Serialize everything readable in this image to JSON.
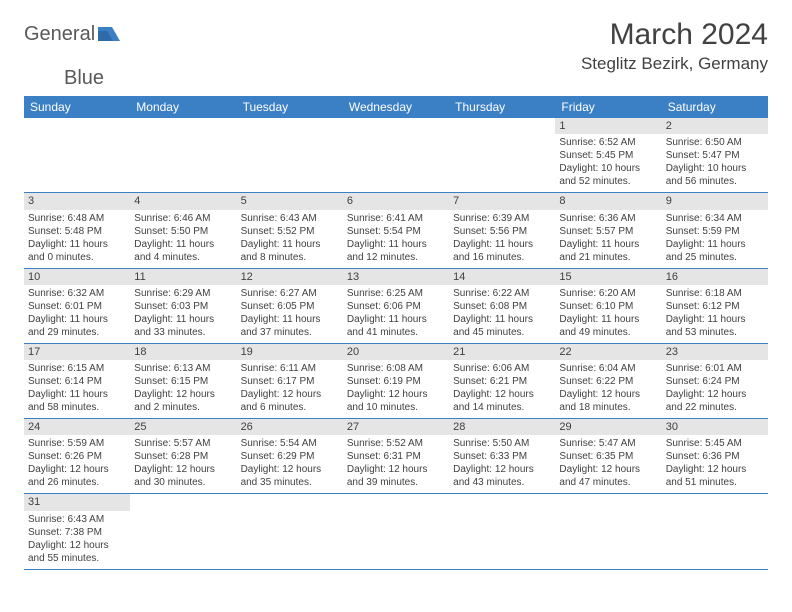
{
  "logo": {
    "text1": "General",
    "text2": "Blue"
  },
  "title": "March 2024",
  "location": "Steglitz Bezirk, Germany",
  "dow": [
    "Sunday",
    "Monday",
    "Tuesday",
    "Wednesday",
    "Thursday",
    "Friday",
    "Saturday"
  ],
  "colors": {
    "header_bg": "#3b7fc4",
    "header_text": "#ffffff",
    "daynum_bg": "#e5e5e5",
    "rule": "#3b7fc4",
    "text": "#414141",
    "logo_gray": "#58595b",
    "logo_blue": "#3b7fc4"
  },
  "fonts": {
    "title_size": 30,
    "location_size": 17,
    "dow_size": 12,
    "daynum_size": 11,
    "body_size": 10
  },
  "layout": {
    "cols": 7,
    "rows": 6,
    "cell_min_height": 72
  },
  "weeks": [
    [
      null,
      null,
      null,
      null,
      null,
      {
        "n": "1",
        "sunrise": "Sunrise: 6:52 AM",
        "sunset": "Sunset: 5:45 PM",
        "daylight": "Daylight: 10 hours and 52 minutes."
      },
      {
        "n": "2",
        "sunrise": "Sunrise: 6:50 AM",
        "sunset": "Sunset: 5:47 PM",
        "daylight": "Daylight: 10 hours and 56 minutes."
      }
    ],
    [
      {
        "n": "3",
        "sunrise": "Sunrise: 6:48 AM",
        "sunset": "Sunset: 5:48 PM",
        "daylight": "Daylight: 11 hours and 0 minutes."
      },
      {
        "n": "4",
        "sunrise": "Sunrise: 6:46 AM",
        "sunset": "Sunset: 5:50 PM",
        "daylight": "Daylight: 11 hours and 4 minutes."
      },
      {
        "n": "5",
        "sunrise": "Sunrise: 6:43 AM",
        "sunset": "Sunset: 5:52 PM",
        "daylight": "Daylight: 11 hours and 8 minutes."
      },
      {
        "n": "6",
        "sunrise": "Sunrise: 6:41 AM",
        "sunset": "Sunset: 5:54 PM",
        "daylight": "Daylight: 11 hours and 12 minutes."
      },
      {
        "n": "7",
        "sunrise": "Sunrise: 6:39 AM",
        "sunset": "Sunset: 5:56 PM",
        "daylight": "Daylight: 11 hours and 16 minutes."
      },
      {
        "n": "8",
        "sunrise": "Sunrise: 6:36 AM",
        "sunset": "Sunset: 5:57 PM",
        "daylight": "Daylight: 11 hours and 21 minutes."
      },
      {
        "n": "9",
        "sunrise": "Sunrise: 6:34 AM",
        "sunset": "Sunset: 5:59 PM",
        "daylight": "Daylight: 11 hours and 25 minutes."
      }
    ],
    [
      {
        "n": "10",
        "sunrise": "Sunrise: 6:32 AM",
        "sunset": "Sunset: 6:01 PM",
        "daylight": "Daylight: 11 hours and 29 minutes."
      },
      {
        "n": "11",
        "sunrise": "Sunrise: 6:29 AM",
        "sunset": "Sunset: 6:03 PM",
        "daylight": "Daylight: 11 hours and 33 minutes."
      },
      {
        "n": "12",
        "sunrise": "Sunrise: 6:27 AM",
        "sunset": "Sunset: 6:05 PM",
        "daylight": "Daylight: 11 hours and 37 minutes."
      },
      {
        "n": "13",
        "sunrise": "Sunrise: 6:25 AM",
        "sunset": "Sunset: 6:06 PM",
        "daylight": "Daylight: 11 hours and 41 minutes."
      },
      {
        "n": "14",
        "sunrise": "Sunrise: 6:22 AM",
        "sunset": "Sunset: 6:08 PM",
        "daylight": "Daylight: 11 hours and 45 minutes."
      },
      {
        "n": "15",
        "sunrise": "Sunrise: 6:20 AM",
        "sunset": "Sunset: 6:10 PM",
        "daylight": "Daylight: 11 hours and 49 minutes."
      },
      {
        "n": "16",
        "sunrise": "Sunrise: 6:18 AM",
        "sunset": "Sunset: 6:12 PM",
        "daylight": "Daylight: 11 hours and 53 minutes."
      }
    ],
    [
      {
        "n": "17",
        "sunrise": "Sunrise: 6:15 AM",
        "sunset": "Sunset: 6:14 PM",
        "daylight": "Daylight: 11 hours and 58 minutes."
      },
      {
        "n": "18",
        "sunrise": "Sunrise: 6:13 AM",
        "sunset": "Sunset: 6:15 PM",
        "daylight": "Daylight: 12 hours and 2 minutes."
      },
      {
        "n": "19",
        "sunrise": "Sunrise: 6:11 AM",
        "sunset": "Sunset: 6:17 PM",
        "daylight": "Daylight: 12 hours and 6 minutes."
      },
      {
        "n": "20",
        "sunrise": "Sunrise: 6:08 AM",
        "sunset": "Sunset: 6:19 PM",
        "daylight": "Daylight: 12 hours and 10 minutes."
      },
      {
        "n": "21",
        "sunrise": "Sunrise: 6:06 AM",
        "sunset": "Sunset: 6:21 PM",
        "daylight": "Daylight: 12 hours and 14 minutes."
      },
      {
        "n": "22",
        "sunrise": "Sunrise: 6:04 AM",
        "sunset": "Sunset: 6:22 PM",
        "daylight": "Daylight: 12 hours and 18 minutes."
      },
      {
        "n": "23",
        "sunrise": "Sunrise: 6:01 AM",
        "sunset": "Sunset: 6:24 PM",
        "daylight": "Daylight: 12 hours and 22 minutes."
      }
    ],
    [
      {
        "n": "24",
        "sunrise": "Sunrise: 5:59 AM",
        "sunset": "Sunset: 6:26 PM",
        "daylight": "Daylight: 12 hours and 26 minutes."
      },
      {
        "n": "25",
        "sunrise": "Sunrise: 5:57 AM",
        "sunset": "Sunset: 6:28 PM",
        "daylight": "Daylight: 12 hours and 30 minutes."
      },
      {
        "n": "26",
        "sunrise": "Sunrise: 5:54 AM",
        "sunset": "Sunset: 6:29 PM",
        "daylight": "Daylight: 12 hours and 35 minutes."
      },
      {
        "n": "27",
        "sunrise": "Sunrise: 5:52 AM",
        "sunset": "Sunset: 6:31 PM",
        "daylight": "Daylight: 12 hours and 39 minutes."
      },
      {
        "n": "28",
        "sunrise": "Sunrise: 5:50 AM",
        "sunset": "Sunset: 6:33 PM",
        "daylight": "Daylight: 12 hours and 43 minutes."
      },
      {
        "n": "29",
        "sunrise": "Sunrise: 5:47 AM",
        "sunset": "Sunset: 6:35 PM",
        "daylight": "Daylight: 12 hours and 47 minutes."
      },
      {
        "n": "30",
        "sunrise": "Sunrise: 5:45 AM",
        "sunset": "Sunset: 6:36 PM",
        "daylight": "Daylight: 12 hours and 51 minutes."
      }
    ],
    [
      {
        "n": "31",
        "sunrise": "Sunrise: 6:43 AM",
        "sunset": "Sunset: 7:38 PM",
        "daylight": "Daylight: 12 hours and 55 minutes."
      },
      null,
      null,
      null,
      null,
      null,
      null
    ]
  ]
}
